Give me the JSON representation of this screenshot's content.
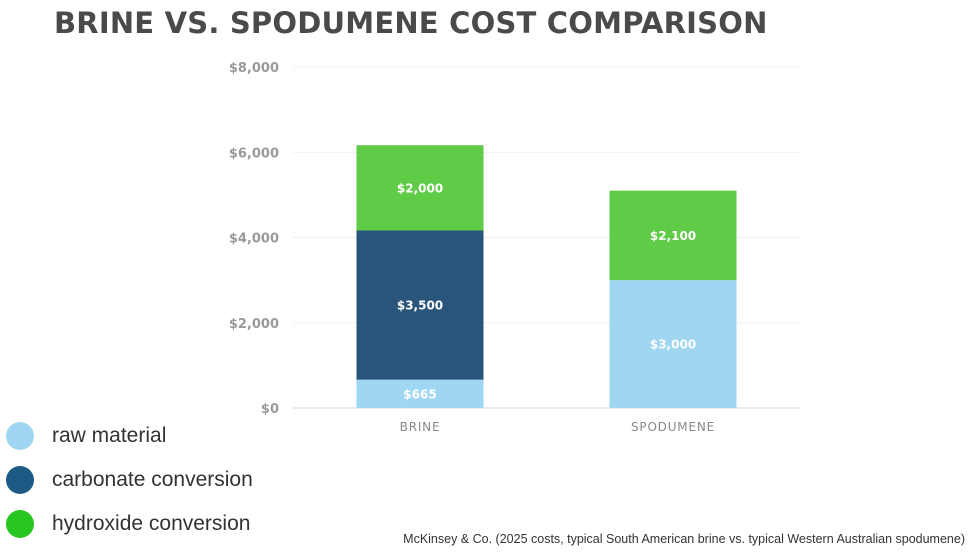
{
  "title": "BRINE VS. SPODUMENE COST COMPARISON",
  "source": "McKinsey & Co. (2025 costs, typical South American brine vs. typical Western Australian spodumene)",
  "legend": [
    {
      "label": "raw material",
      "color": "#9fd6f2"
    },
    {
      "label": "carbonate conversion",
      "color": "#1f5a84"
    },
    {
      "label": "hydroxide conversion",
      "color": "#27c620"
    }
  ],
  "chart_data": {
    "type": "bar",
    "stacked": true,
    "categories": [
      "BRINE",
      "SPODUMENE"
    ],
    "ylim": [
      0,
      8000
    ],
    "yticks": [
      0,
      2000,
      4000,
      6000,
      8000
    ],
    "ytick_labels": [
      "$0",
      "$2,000",
      "$4,000",
      "$6,000",
      "$8,000"
    ],
    "grid": true,
    "series": [
      {
        "name": "raw material",
        "color": "#9fd6f2",
        "values": [
          665,
          3000
        ],
        "labels": [
          "$665",
          "$3,000"
        ]
      },
      {
        "name": "carbonate conversion",
        "color": "#2a557a",
        "values": [
          3500,
          0
        ],
        "labels": [
          "$3,500",
          ""
        ]
      },
      {
        "name": "hydroxide conversion",
        "color": "#5fcb46",
        "values": [
          2000,
          2100
        ],
        "labels": [
          "$2,000",
          "$2,100"
        ]
      }
    ]
  }
}
